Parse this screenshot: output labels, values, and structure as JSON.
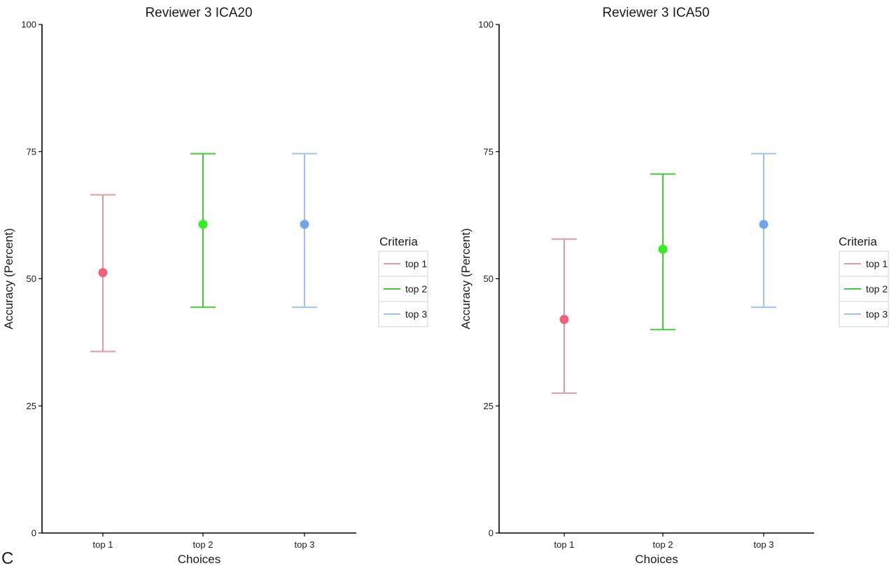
{
  "panel_label": "C",
  "chart_data": [
    {
      "type": "scatter",
      "title": "Reviewer 3 ICA20",
      "xlabel": "Choices",
      "ylabel": "Accuracy (Percent)",
      "categories": [
        "top 1",
        "top 2",
        "top 3"
      ],
      "ylim": [
        0,
        100
      ],
      "yticks": [
        0,
        25,
        50,
        75,
        100
      ],
      "grid": false,
      "legend": {
        "title": "Criteria",
        "placement": "right",
        "entries": [
          "top 1",
          "top 2",
          "top 3"
        ]
      },
      "series": [
        {
          "name": "top 1",
          "category": "top 1",
          "value": 51.2,
          "lower": 35.7,
          "upper": 66.5,
          "color": "#f0607a",
          "bar_color": "#e39aa6"
        },
        {
          "name": "top 2",
          "category": "top 2",
          "value": 60.7,
          "lower": 44.4,
          "upper": 74.6,
          "color": "#33ee22",
          "bar_color": "#44cc33"
        },
        {
          "name": "top 3",
          "category": "top 3",
          "value": 60.7,
          "lower": 44.4,
          "upper": 74.6,
          "color": "#6fa8e8",
          "bar_color": "#9fc4ea"
        }
      ]
    },
    {
      "type": "scatter",
      "title": "Reviewer 3 ICA50",
      "xlabel": "Choices",
      "ylabel": "Accuracy (Percent)",
      "categories": [
        "top 1",
        "top 2",
        "top 3"
      ],
      "ylim": [
        0,
        100
      ],
      "yticks": [
        0,
        25,
        50,
        75,
        100
      ],
      "grid": false,
      "legend": {
        "title": "Criteria",
        "placement": "right",
        "entries": [
          "top 1",
          "top 2",
          "top 3"
        ]
      },
      "series": [
        {
          "name": "top 1",
          "category": "top 1",
          "value": 42.0,
          "lower": 27.5,
          "upper": 57.8,
          "color": "#f0607a",
          "bar_color": "#e39aa6"
        },
        {
          "name": "top 2",
          "category": "top 2",
          "value": 55.8,
          "lower": 40.0,
          "upper": 70.6,
          "color": "#33ee22",
          "bar_color": "#44cc33"
        },
        {
          "name": "top 3",
          "category": "top 3",
          "value": 60.7,
          "lower": 44.4,
          "upper": 74.6,
          "color": "#6fa8e8",
          "bar_color": "#9fc4ea"
        }
      ]
    }
  ]
}
